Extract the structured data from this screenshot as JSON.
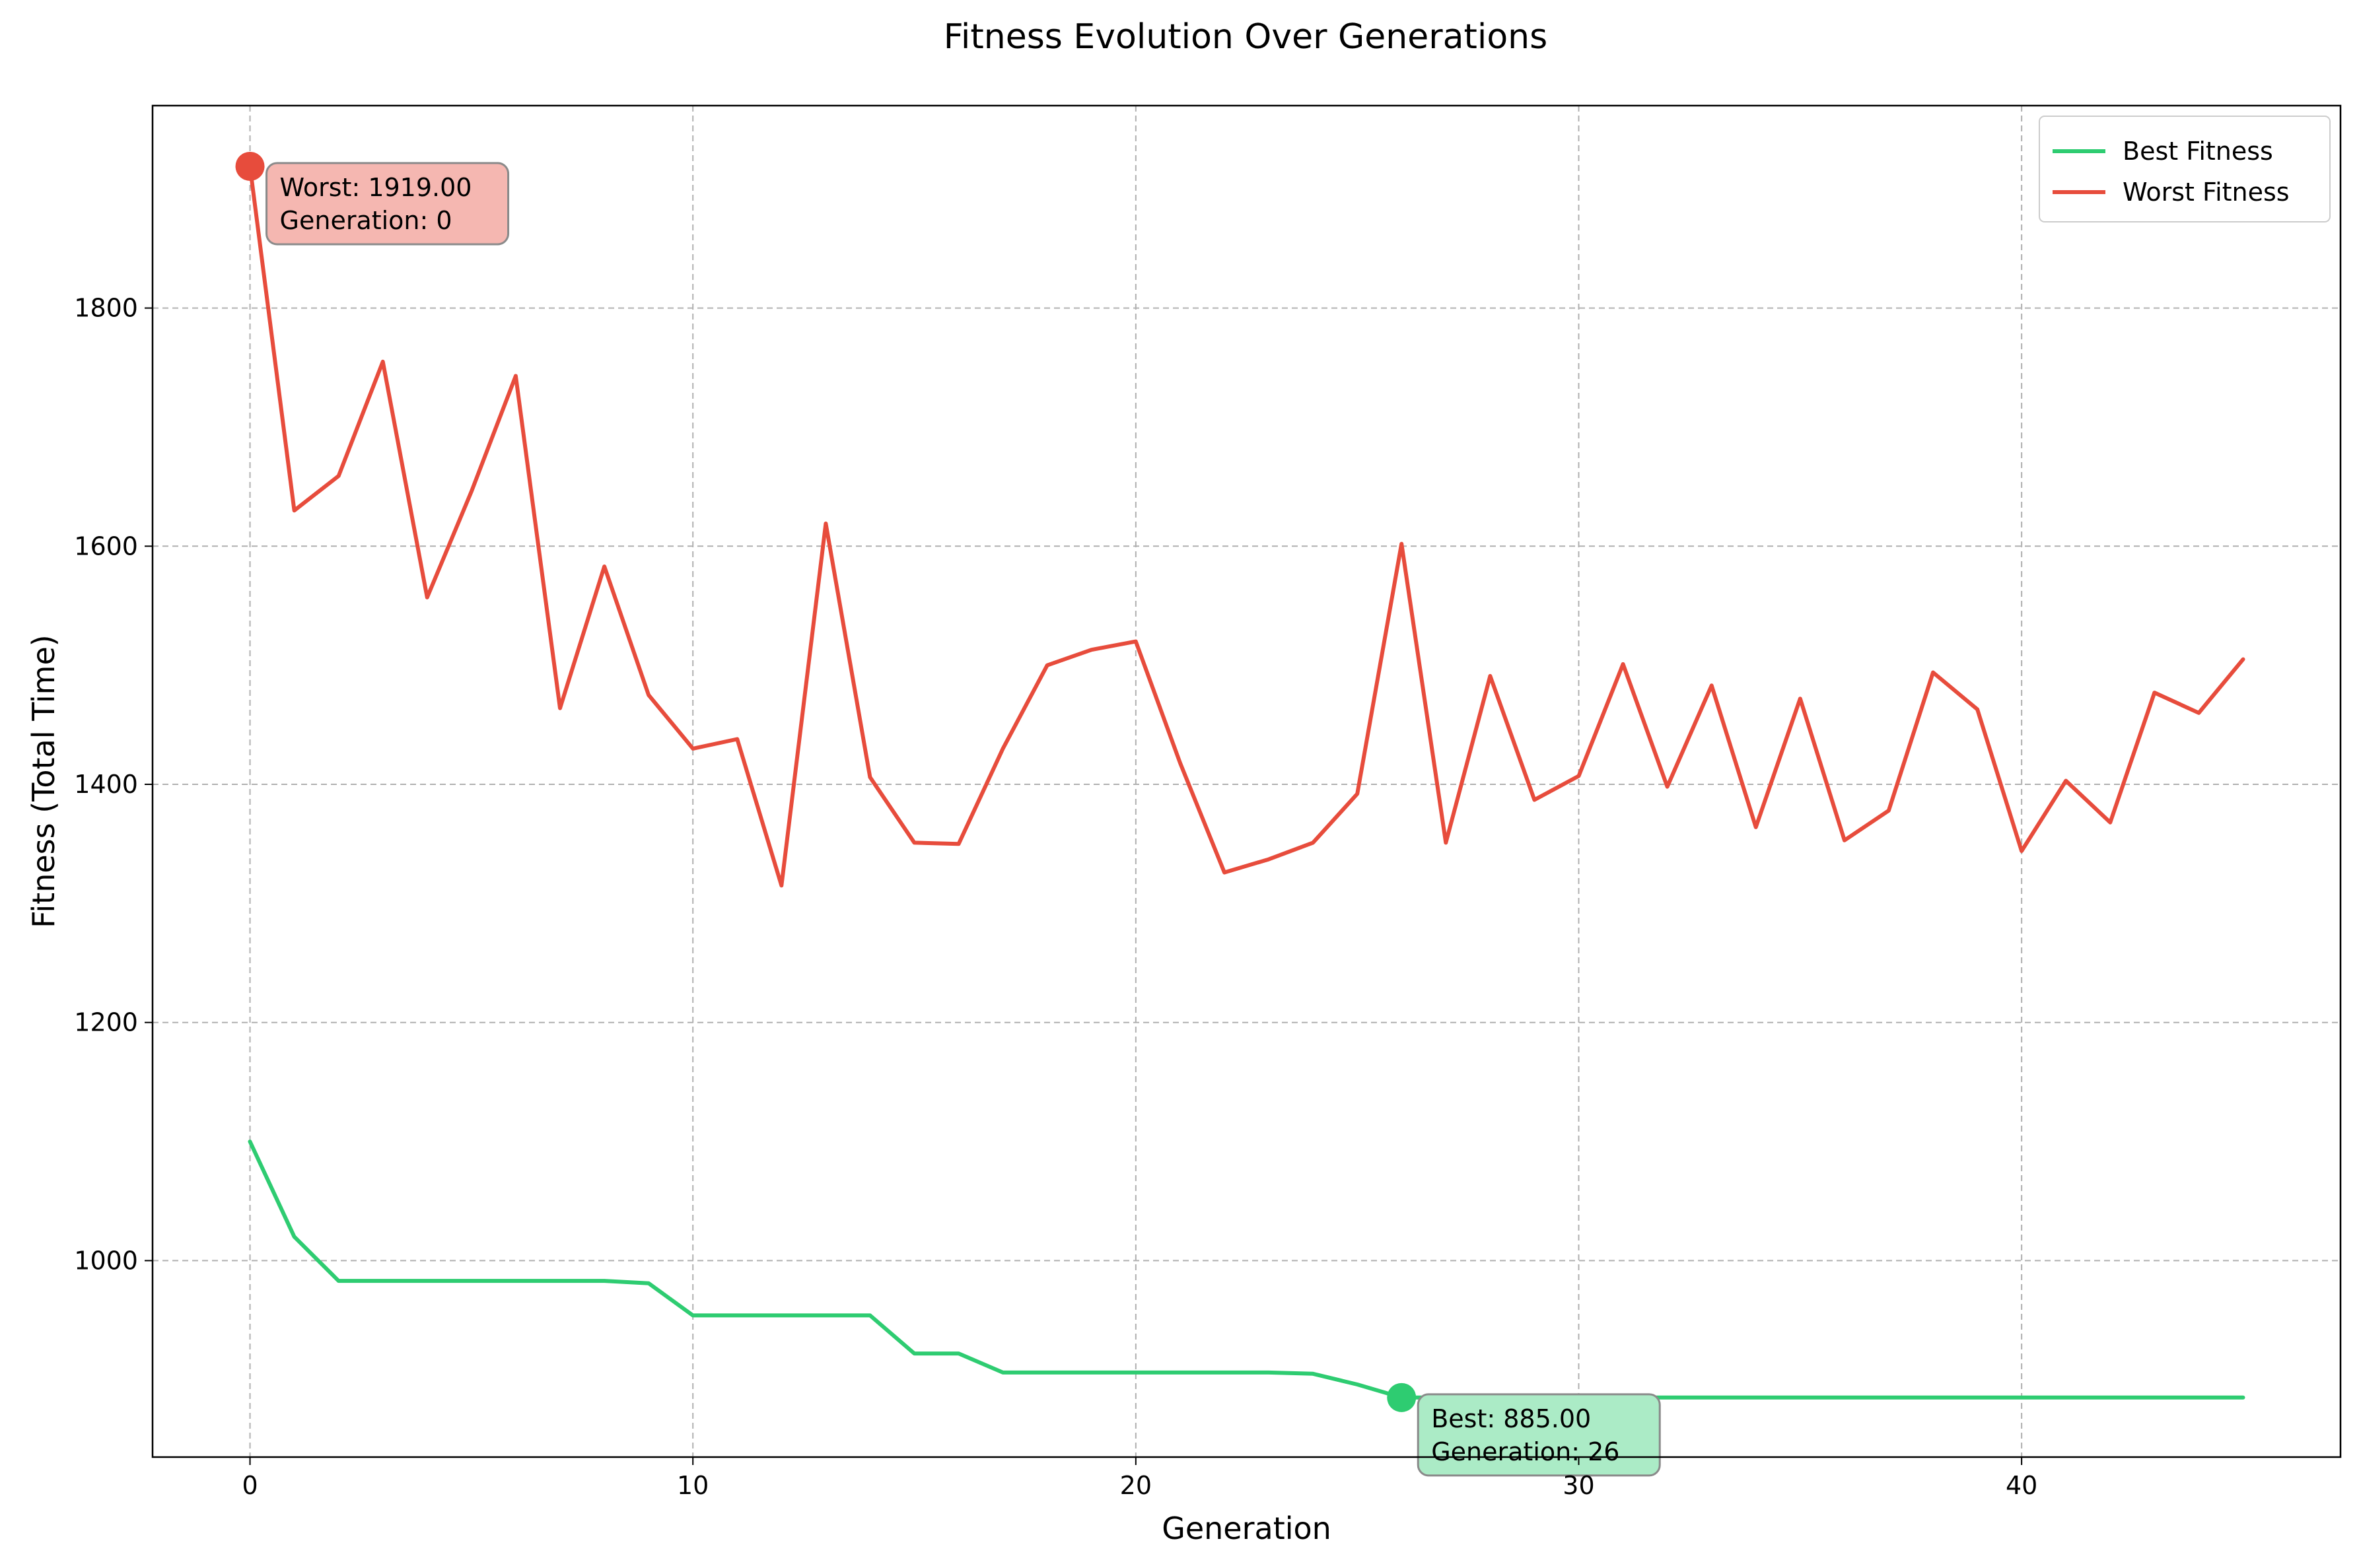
{
  "chart_data": {
    "type": "line",
    "title": "Fitness Evolution Over Generations",
    "xlabel": "Generation",
    "ylabel": "Fitness (Total Time)",
    "xlim": [
      -2.2,
      47.2
    ],
    "ylim": [
      835,
      1970
    ],
    "xticks": [
      0,
      10,
      20,
      30,
      40
    ],
    "yticks": [
      1000,
      1200,
      1400,
      1600,
      1800
    ],
    "grid": true,
    "legend_position": "top-right",
    "x": [
      0,
      1,
      2,
      3,
      4,
      5,
      6,
      7,
      8,
      9,
      10,
      11,
      12,
      13,
      14,
      15,
      16,
      17,
      18,
      19,
      20,
      21,
      22,
      23,
      24,
      25,
      26,
      27,
      28,
      29,
      30,
      31,
      32,
      33,
      34,
      35,
      36,
      37,
      38,
      39,
      40,
      41,
      42,
      43,
      44,
      45
    ],
    "series": [
      {
        "name": "Best Fitness",
        "color": "#2ecc71",
        "values": [
          1100,
          1020,
          983,
          983,
          983,
          983,
          983,
          983,
          983,
          981,
          954,
          954,
          954,
          954,
          954,
          922,
          922,
          906,
          906,
          906,
          906,
          906,
          906,
          906,
          905,
          896,
          885,
          885,
          885,
          885,
          885,
          885,
          885,
          885,
          885,
          885,
          885,
          885,
          885,
          885,
          885,
          885,
          885,
          885,
          885,
          885
        ]
      },
      {
        "name": "Worst Fitness",
        "color": "#e74c3c",
        "values": [
          1919,
          1630,
          1659,
          1755,
          1557,
          1646,
          1743,
          1464,
          1583,
          1475,
          1430,
          1438,
          1315,
          1619,
          1406,
          1351,
          1350,
          1430,
          1500,
          1513,
          1520,
          1418,
          1326,
          1337,
          1351,
          1392,
          1602,
          1351,
          1491,
          1387,
          1407,
          1501,
          1398,
          1483,
          1364,
          1472,
          1353,
          1378,
          1494,
          1463,
          1344,
          1403,
          1368,
          1477,
          1460,
          1505
        ]
      }
    ],
    "annotations": [
      {
        "series": "Worst Fitness",
        "x": 0,
        "y": 1919,
        "line1": "Worst: 1919.00",
        "line2": "Generation: 0",
        "box_color": "#f5b7b1"
      },
      {
        "series": "Best Fitness",
        "x": 26,
        "y": 885,
        "line1": "Best: 885.00",
        "line2": "Generation: 26",
        "box_color": "#abebc6"
      }
    ],
    "gridline_color": "#b0b0b0"
  }
}
